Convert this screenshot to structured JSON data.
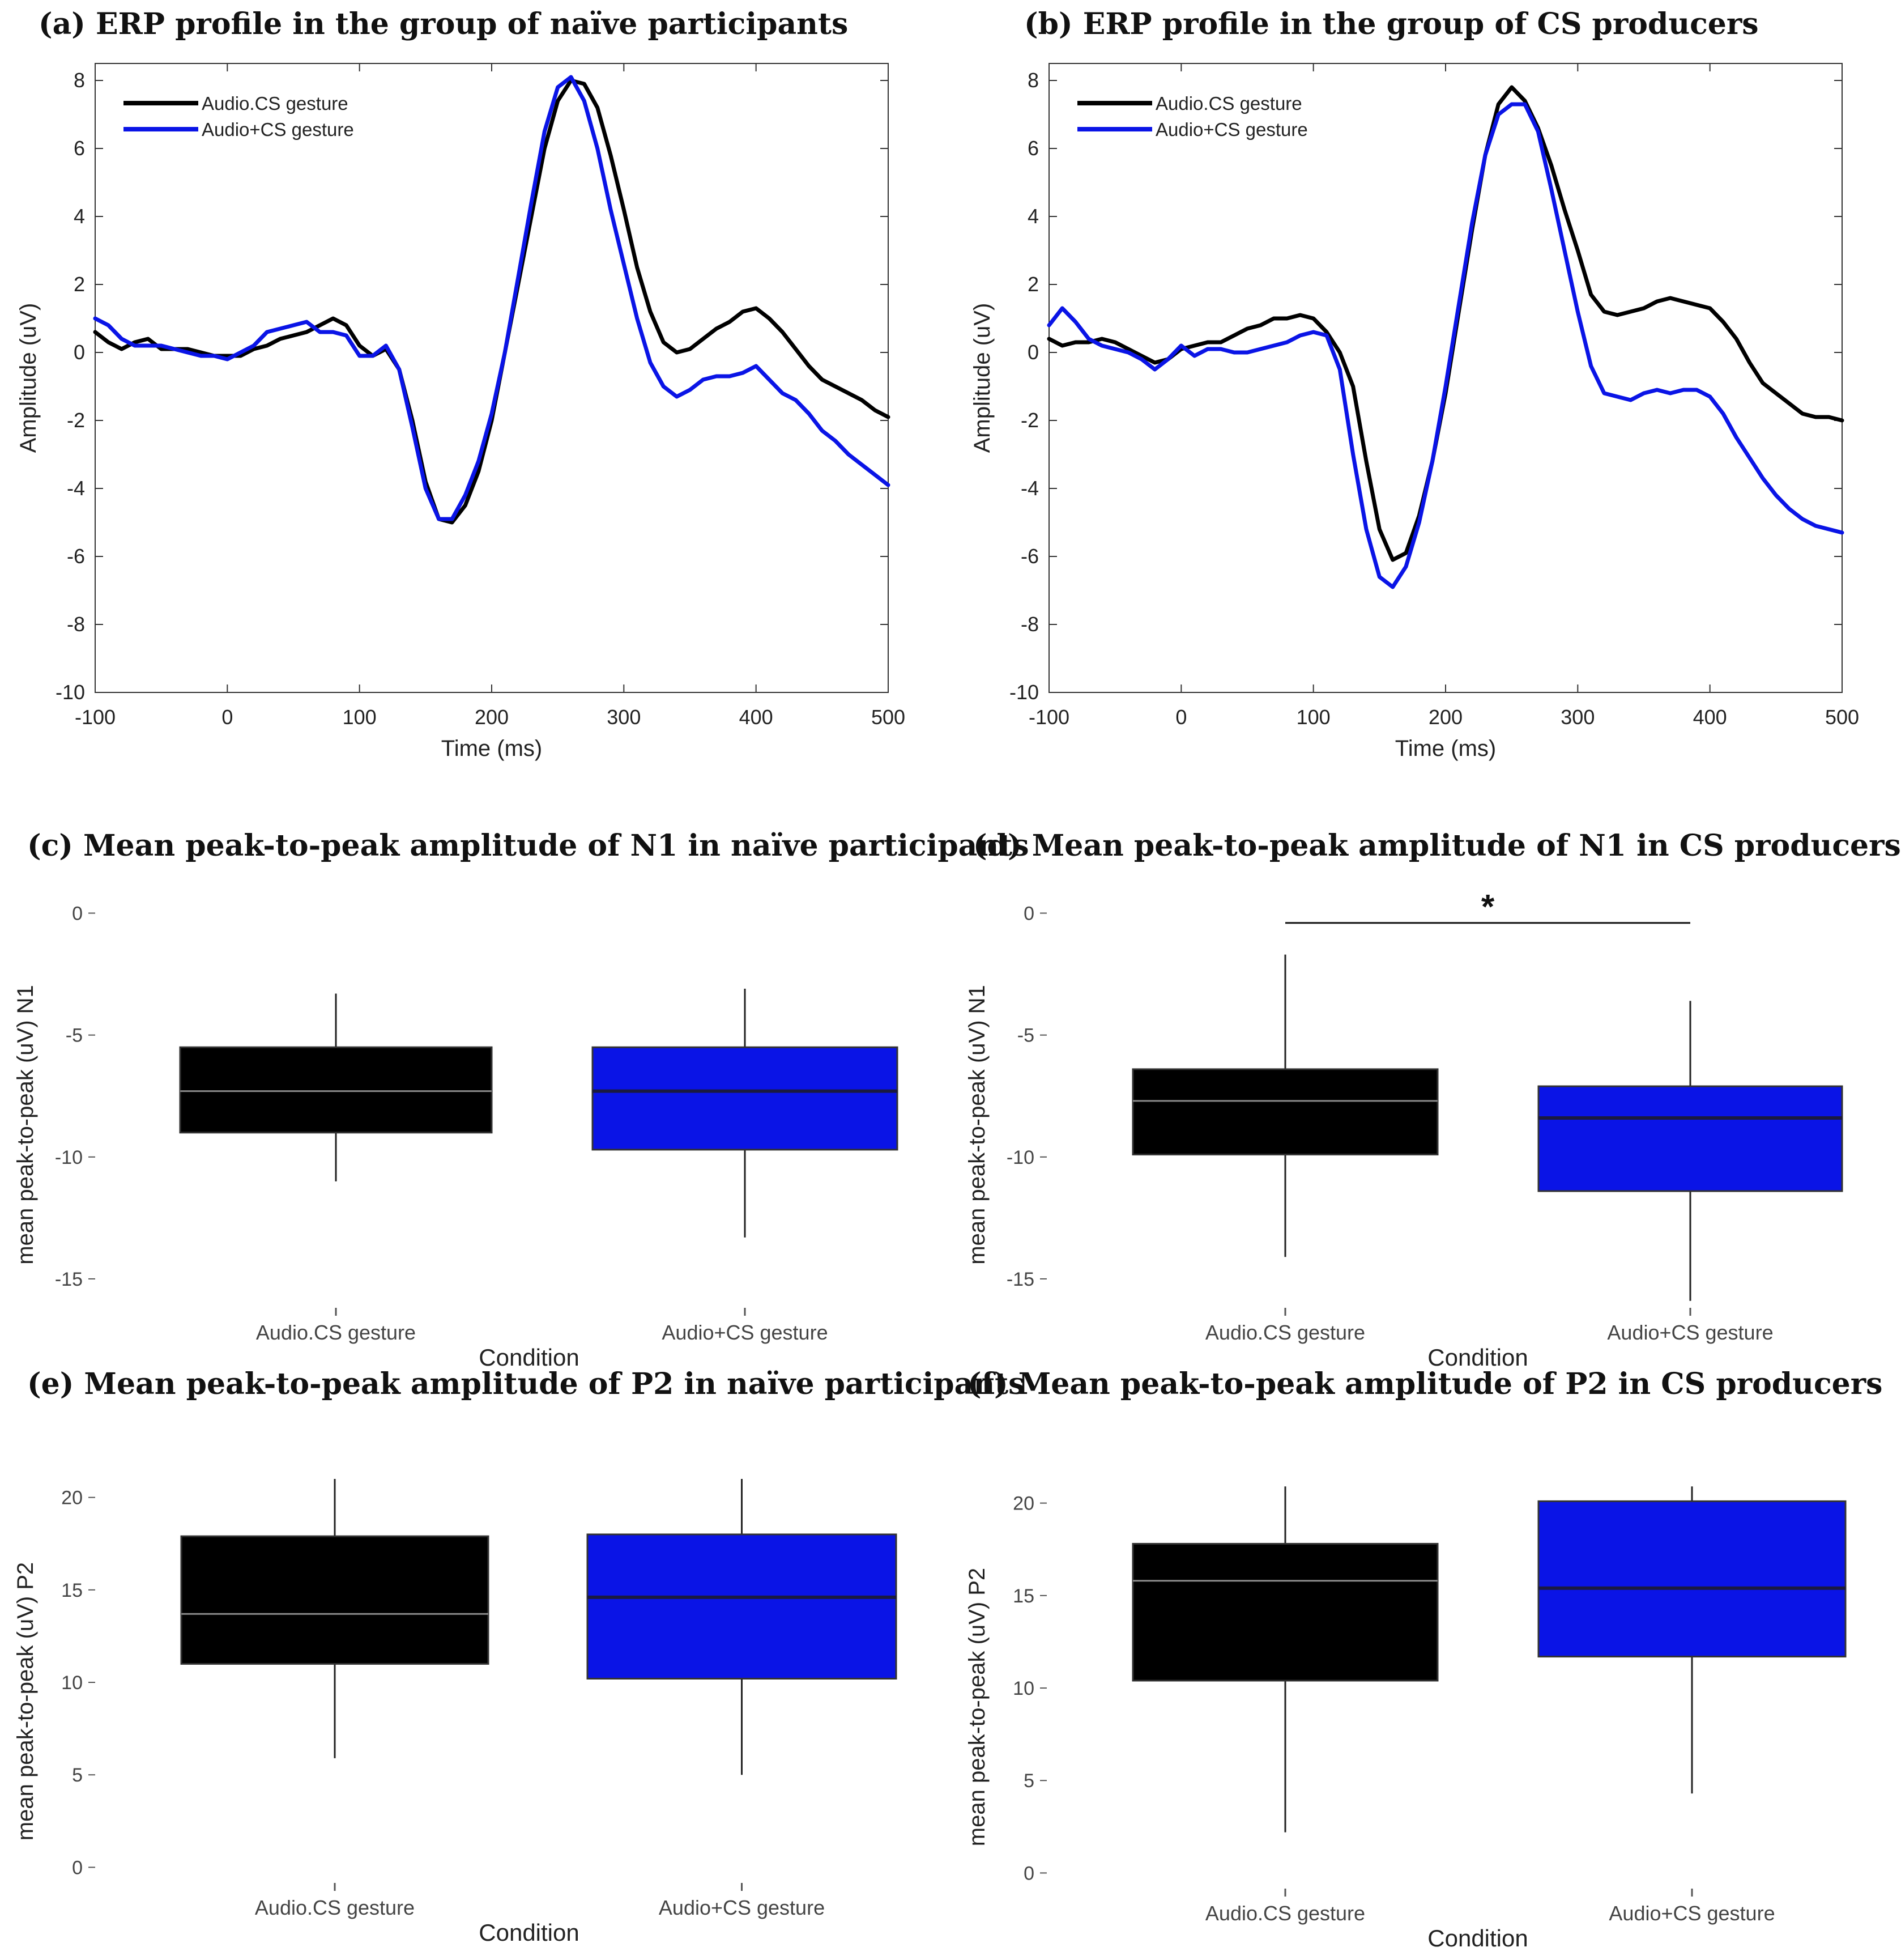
{
  "panels": [
    {
      "id": "a",
      "tag": "(a)",
      "title": "ERP profile in the group of naïve participants"
    },
    {
      "id": "b",
      "tag": "(b)",
      "title": "ERP profile in the group of CS  producers"
    },
    {
      "id": "c",
      "tag": "(c)",
      "title": "Mean peak-to-peak amplitude of N1 in naïve participants"
    },
    {
      "id": "d",
      "tag": "(d)",
      "title": "Mean peak-to-peak amplitude of N1 in CS producers"
    },
    {
      "id": "e",
      "tag": "(e)",
      "title": "Mean peak-to-peak amplitude of P2 in naïve participants"
    },
    {
      "id": "f",
      "tag": "(f)",
      "title": "Mean peak-to-peak amplitude of P2 in CS producers"
    }
  ],
  "colors": {
    "audio_cs": "#000000",
    "audio_plus_cs": "#0a14e6",
    "median_line_black": "#8a8a8a",
    "median_line_blue": "#1a1a40"
  },
  "chart_data": [
    {
      "id": "a",
      "type": "line",
      "title": "ERP profile in the group of naïve participants",
      "xlabel": "Time (ms)",
      "ylabel": "Amplitude (uV)",
      "xlim": [
        -100,
        500
      ],
      "ylim": [
        -10,
        8.5
      ],
      "xticks": [
        -100,
        0,
        100,
        200,
        300,
        400,
        500
      ],
      "yticks": [
        -10,
        -8,
        -6,
        -4,
        -2,
        0,
        2,
        4,
        6,
        8
      ],
      "legend": "top-left",
      "series": [
        {
          "name": "Audio.CS gesture",
          "color": "#000000",
          "x": [
            -100,
            -90,
            -80,
            -70,
            -60,
            -50,
            -40,
            -30,
            -20,
            -10,
            0,
            10,
            20,
            30,
            40,
            50,
            60,
            70,
            80,
            90,
            100,
            110,
            120,
            130,
            140,
            150,
            160,
            170,
            180,
            190,
            200,
            210,
            220,
            230,
            240,
            250,
            260,
            270,
            280,
            290,
            300,
            310,
            320,
            330,
            340,
            350,
            360,
            370,
            380,
            390,
            400,
            410,
            420,
            430,
            440,
            450,
            460,
            470,
            480,
            490,
            500
          ],
          "y": [
            0.6,
            0.3,
            0.1,
            0.3,
            0.4,
            0.1,
            0.1,
            0.1,
            0.0,
            -0.1,
            -0.1,
            -0.1,
            0.1,
            0.2,
            0.4,
            0.5,
            0.6,
            0.8,
            1.0,
            0.8,
            0.2,
            -0.1,
            0.1,
            -0.5,
            -2.0,
            -3.8,
            -4.9,
            -5.0,
            -4.5,
            -3.5,
            -2.0,
            0.0,
            2.0,
            4.0,
            6.0,
            7.4,
            8.0,
            7.9,
            7.2,
            5.8,
            4.2,
            2.5,
            1.2,
            0.3,
            0.0,
            0.1,
            0.4,
            0.7,
            0.9,
            1.2,
            1.3,
            1.0,
            0.6,
            0.1,
            -0.4,
            -0.8,
            -1.0,
            -1.2,
            -1.4,
            -1.7,
            -1.9
          ]
        },
        {
          "name": "Audio+CS gesture",
          "color": "#0a14e6",
          "x": [
            -100,
            -90,
            -80,
            -70,
            -60,
            -50,
            -40,
            -30,
            -20,
            -10,
            0,
            10,
            20,
            30,
            40,
            50,
            60,
            70,
            80,
            90,
            100,
            110,
            120,
            130,
            140,
            150,
            160,
            170,
            180,
            190,
            200,
            210,
            220,
            230,
            240,
            250,
            260,
            270,
            280,
            290,
            300,
            310,
            320,
            330,
            340,
            350,
            360,
            370,
            380,
            390,
            400,
            410,
            420,
            430,
            440,
            450,
            460,
            470,
            480,
            490,
            500
          ],
          "y": [
            1.0,
            0.8,
            0.4,
            0.2,
            0.2,
            0.2,
            0.1,
            0.0,
            -0.1,
            -0.1,
            -0.2,
            0.0,
            0.2,
            0.6,
            0.7,
            0.8,
            0.9,
            0.6,
            0.6,
            0.5,
            -0.1,
            -0.1,
            0.2,
            -0.5,
            -2.2,
            -4.0,
            -4.9,
            -4.9,
            -4.2,
            -3.2,
            -1.8,
            0.0,
            2.2,
            4.4,
            6.5,
            7.8,
            8.1,
            7.4,
            6.0,
            4.2,
            2.6,
            1.0,
            -0.3,
            -1.0,
            -1.3,
            -1.1,
            -0.8,
            -0.7,
            -0.7,
            -0.6,
            -0.4,
            -0.8,
            -1.2,
            -1.4,
            -1.8,
            -2.3,
            -2.6,
            -3.0,
            -3.3,
            -3.6,
            -3.9
          ]
        }
      ]
    },
    {
      "id": "b",
      "type": "line",
      "title": "ERP profile in the group of CS  producers",
      "xlabel": "Time (ms)",
      "ylabel": "Amplitude (uV)",
      "xlim": [
        -100,
        500
      ],
      "ylim": [
        -10,
        8.5
      ],
      "xticks": [
        -100,
        0,
        100,
        200,
        300,
        400,
        500
      ],
      "yticks": [
        -10,
        -8,
        -6,
        -4,
        -2,
        0,
        2,
        4,
        6,
        8
      ],
      "legend": "top-left",
      "series": [
        {
          "name": "Audio.CS gesture",
          "color": "#000000",
          "x": [
            -100,
            -90,
            -80,
            -70,
            -60,
            -50,
            -40,
            -30,
            -20,
            -10,
            0,
            10,
            20,
            30,
            40,
            50,
            60,
            70,
            80,
            90,
            100,
            110,
            120,
            130,
            140,
            150,
            160,
            170,
            180,
            190,
            200,
            210,
            220,
            230,
            240,
            250,
            260,
            270,
            280,
            290,
            300,
            310,
            320,
            330,
            340,
            350,
            360,
            370,
            380,
            390,
            400,
            410,
            420,
            430,
            440,
            450,
            460,
            470,
            480,
            490,
            500
          ],
          "y": [
            0.4,
            0.2,
            0.3,
            0.3,
            0.4,
            0.3,
            0.1,
            -0.1,
            -0.3,
            -0.2,
            0.1,
            0.2,
            0.3,
            0.3,
            0.5,
            0.7,
            0.8,
            1.0,
            1.0,
            1.1,
            1.0,
            0.6,
            0.0,
            -1.0,
            -3.2,
            -5.2,
            -6.1,
            -5.9,
            -4.8,
            -3.2,
            -1.2,
            1.2,
            3.6,
            5.8,
            7.3,
            7.8,
            7.4,
            6.6,
            5.5,
            4.2,
            3.0,
            1.7,
            1.2,
            1.1,
            1.2,
            1.3,
            1.5,
            1.6,
            1.5,
            1.4,
            1.3,
            0.9,
            0.4,
            -0.3,
            -0.9,
            -1.2,
            -1.5,
            -1.8,
            -1.9,
            -1.9,
            -2.0
          ]
        },
        {
          "name": "Audio+CS gesture",
          "color": "#0a14e6",
          "x": [
            -100,
            -90,
            -80,
            -70,
            -60,
            -50,
            -40,
            -30,
            -20,
            -10,
            0,
            10,
            20,
            30,
            40,
            50,
            60,
            70,
            80,
            90,
            100,
            110,
            120,
            130,
            140,
            150,
            160,
            170,
            180,
            190,
            200,
            210,
            220,
            230,
            240,
            250,
            260,
            270,
            280,
            290,
            300,
            310,
            320,
            330,
            340,
            350,
            360,
            370,
            380,
            390,
            400,
            410,
            420,
            430,
            440,
            450,
            460,
            470,
            480,
            490,
            500
          ],
          "y": [
            0.8,
            1.3,
            0.9,
            0.4,
            0.2,
            0.1,
            0.0,
            -0.2,
            -0.5,
            -0.2,
            0.2,
            -0.1,
            0.1,
            0.1,
            0.0,
            0.0,
            0.1,
            0.2,
            0.3,
            0.5,
            0.6,
            0.5,
            -0.5,
            -3.0,
            -5.2,
            -6.6,
            -6.9,
            -6.3,
            -5.0,
            -3.2,
            -1.0,
            1.4,
            3.8,
            5.8,
            7.0,
            7.3,
            7.3,
            6.5,
            4.8,
            3.0,
            1.2,
            -0.4,
            -1.2,
            -1.3,
            -1.4,
            -1.2,
            -1.1,
            -1.2,
            -1.1,
            -1.1,
            -1.3,
            -1.8,
            -2.5,
            -3.1,
            -3.7,
            -4.2,
            -4.6,
            -4.9,
            -5.1,
            -5.2,
            -5.3
          ]
        }
      ]
    },
    {
      "id": "c",
      "type": "box",
      "title": "Mean peak-to-peak amplitude of N1 in naïve participants",
      "xlabel": "Condition",
      "ylabel": "mean peak-to-peak (uV) N1",
      "ylim": [
        -16,
        0.5
      ],
      "yticks": [
        0,
        -5,
        -10,
        -15
      ],
      "categories": [
        "Audio.CS gesture",
        "Audio+CS gesture"
      ],
      "boxes": [
        {
          "label": "Audio.CS gesture",
          "color": "#000000",
          "whisker_low": -11.0,
          "q1": -9.0,
          "median": -7.3,
          "q3": -5.5,
          "whisker_high": -3.3
        },
        {
          "label": "Audio+CS gesture",
          "color": "#0a14e6",
          "whisker_low": -13.3,
          "q1": -9.7,
          "median": -7.3,
          "q3": -5.5,
          "whisker_high": -3.1
        }
      ]
    },
    {
      "id": "d",
      "type": "box",
      "title": "Mean peak-to-peak amplitude of N1 in CS producers",
      "xlabel": "Condition",
      "ylabel": "mean peak-to-peak (uV) N1",
      "ylim": [
        -16,
        0.5
      ],
      "yticks": [
        0,
        -5,
        -10,
        -15
      ],
      "categories": [
        "Audio.CS gesture",
        "Audio+CS gesture"
      ],
      "annotation": "*",
      "boxes": [
        {
          "label": "Audio.CS gesture",
          "color": "#000000",
          "whisker_low": -14.1,
          "q1": -9.9,
          "median": -7.7,
          "q3": -6.4,
          "whisker_high": -1.7
        },
        {
          "label": "Audio+CS gesture",
          "color": "#0a14e6",
          "whisker_low": -15.9,
          "q1": -11.4,
          "median": -8.4,
          "q3": -7.1,
          "whisker_high": -3.6
        }
      ]
    },
    {
      "id": "e",
      "type": "box",
      "title": "Mean peak-to-peak amplitude of P2 in naïve participants",
      "xlabel": "Condition",
      "ylabel": "mean peak-to-peak (uV) P2",
      "ylim": [
        -0.6,
        21
      ],
      "yticks": [
        0,
        5,
        10,
        15,
        20
      ],
      "categories": [
        "Audio.CS gesture",
        "Audio+CS gesture"
      ],
      "boxes": [
        {
          "label": "Audio.CS gesture",
          "color": "#000000",
          "whisker_low": 5.9,
          "q1": 11.0,
          "median": 13.7,
          "q3": 17.9,
          "whisker_high": 21.0
        },
        {
          "label": "Audio+CS gesture",
          "color": "#0a14e6",
          "whisker_low": 5.0,
          "q1": 10.2,
          "median": 14.6,
          "q3": 18.0,
          "whisker_high": 21.0
        }
      ]
    },
    {
      "id": "f",
      "type": "box",
      "title": "Mean peak-to-peak amplitude of P2 in CS producers",
      "xlabel": "Condition",
      "ylabel": "mean peak-to-peak (uV) P2",
      "ylim": [
        -0.6,
        21
      ],
      "yticks": [
        0,
        5,
        10,
        15,
        20
      ],
      "categories": [
        "Audio.CS gesture",
        "Audio+CS gesture"
      ],
      "boxes": [
        {
          "label": "Audio.CS gesture",
          "color": "#000000",
          "whisker_low": 2.2,
          "q1": 10.4,
          "median": 15.8,
          "q3": 17.8,
          "whisker_high": 20.9
        },
        {
          "label": "Audio+CS gesture",
          "color": "#0a14e6",
          "whisker_low": 4.3,
          "q1": 11.7,
          "median": 15.4,
          "q3": 20.1,
          "whisker_high": 20.9
        }
      ]
    }
  ]
}
